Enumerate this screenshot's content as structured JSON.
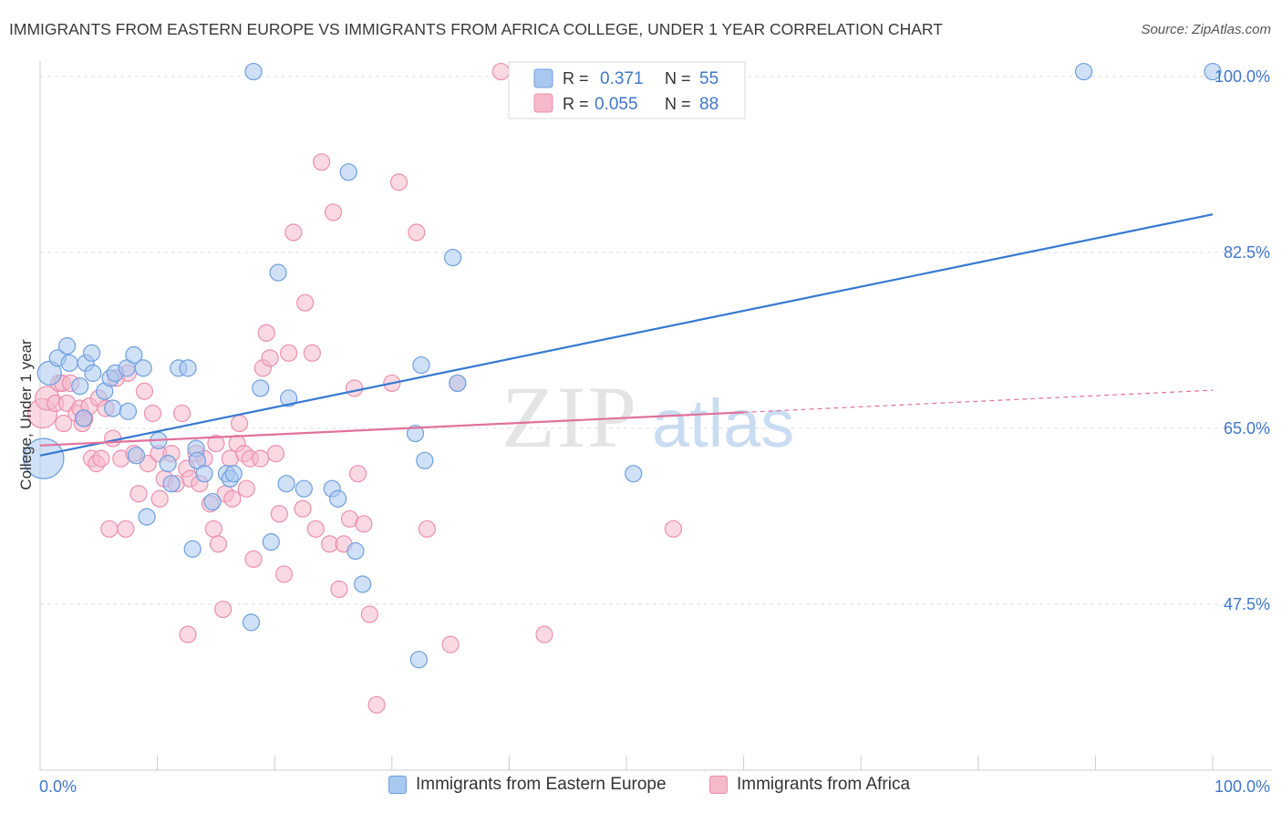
{
  "title": "IMMIGRANTS FROM EASTERN EUROPE VS IMMIGRANTS FROM AFRICA COLLEGE, UNDER 1 YEAR CORRELATION CHART",
  "source": "Source: ZipAtlas.com",
  "colors": {
    "blue_fill": "#a9c8f0",
    "blue_stroke": "#6d9fe0",
    "blue_line": "#3579d1",
    "pink_fill": "#f6b9cc",
    "pink_stroke": "#ec8fae",
    "pink_line": "#e2719b",
    "value_text": "#3f78c9",
    "grid": "#dddddd"
  },
  "stats_legend": {
    "rows": [
      {
        "r_label": "R =",
        "r_value": "0.371",
        "n_label": "N =",
        "n_value": "55",
        "series": "blue"
      },
      {
        "r_label": "R =",
        "r_value": "0.055",
        "n_label": "N =",
        "n_value": "88",
        "series": "pink"
      }
    ]
  },
  "watermark": {
    "zip": "ZIP",
    "atlas": "atlas"
  },
  "chart_data": {
    "type": "scatter",
    "title": "IMMIGRANTS FROM EASTERN EUROPE VS IMMIGRANTS FROM AFRICA COLLEGE, UNDER 1 YEAR CORRELATION CHART",
    "xlabel": "",
    "ylabel": "College, Under 1 year",
    "xlim": [
      0,
      100
    ],
    "ylim": [
      31,
      102
    ],
    "x_tick_labels": [
      "0.0%",
      "100.0%"
    ],
    "y_ticks": [
      {
        "value": 100.0,
        "label": "100.0%"
      },
      {
        "value": 82.5,
        "label": "82.5%"
      },
      {
        "value": 65.0,
        "label": "65.0%"
      },
      {
        "value": 47.5,
        "label": "47.5%"
      }
    ],
    "grid": true,
    "legend_position": "bottom",
    "series": [
      {
        "name": "Immigrants from Eastern Europe",
        "color": "blue",
        "trend": {
          "x": [
            0,
            100
          ],
          "y": [
            62.3,
            86.3
          ],
          "solid_to": 100
        },
        "points": [
          [
            0.3,
            62.0,
            22
          ],
          [
            0.8,
            70.5,
            13
          ],
          [
            1.5,
            72.0,
            9
          ],
          [
            2.3,
            73.2,
            9
          ],
          [
            2.5,
            71.5,
            9
          ],
          [
            3.4,
            69.2,
            9
          ],
          [
            3.7,
            66.0,
            9
          ],
          [
            3.9,
            71.5,
            9
          ],
          [
            4.4,
            72.5,
            9
          ],
          [
            4.5,
            70.5,
            9
          ],
          [
            5.5,
            68.7,
            9
          ],
          [
            6.0,
            70.0,
            9
          ],
          [
            6.2,
            67.0,
            9
          ],
          [
            6.4,
            70.5,
            9
          ],
          [
            7.4,
            71.0,
            9
          ],
          [
            7.5,
            66.7,
            9
          ],
          [
            8.0,
            72.3,
            9
          ],
          [
            8.2,
            62.3,
            9
          ],
          [
            8.8,
            71.0,
            9
          ],
          [
            9.1,
            56.2,
            9
          ],
          [
            10.1,
            63.8,
            9
          ],
          [
            10.9,
            61.5,
            9
          ],
          [
            11.2,
            59.5,
            9
          ],
          [
            11.8,
            71.0,
            9
          ],
          [
            12.6,
            71.0,
            9
          ],
          [
            13.0,
            53.0,
            9
          ],
          [
            13.3,
            63.0,
            9
          ],
          [
            13.4,
            61.8,
            9
          ],
          [
            14.0,
            60.5,
            9
          ],
          [
            14.7,
            57.7,
            9
          ],
          [
            15.9,
            60.5,
            9
          ],
          [
            16.2,
            60.0,
            9
          ],
          [
            16.5,
            60.5,
            9
          ],
          [
            18.0,
            45.7,
            9
          ],
          [
            18.8,
            69.0,
            9
          ],
          [
            19.7,
            53.7,
            9
          ],
          [
            20.3,
            80.5,
            9
          ],
          [
            21.0,
            59.5,
            9
          ],
          [
            21.2,
            68.0,
            9
          ],
          [
            22.5,
            59.0,
            9
          ],
          [
            24.9,
            59.0,
            9
          ],
          [
            25.4,
            58.0,
            9
          ],
          [
            26.3,
            90.5,
            9
          ],
          [
            26.9,
            52.8,
            9
          ],
          [
            27.5,
            49.5,
            9
          ],
          [
            32.3,
            42.0,
            9
          ],
          [
            32.0,
            64.5,
            9
          ],
          [
            32.5,
            71.3,
            9
          ],
          [
            32.8,
            61.8,
            9
          ],
          [
            35.2,
            82.0,
            9
          ],
          [
            35.6,
            69.5,
            9
          ],
          [
            50.6,
            60.5,
            9
          ],
          [
            18.2,
            100.5,
            9
          ],
          [
            89.0,
            100.5,
            9
          ],
          [
            100.0,
            100.5,
            9
          ]
        ]
      },
      {
        "name": "Immigrants from Africa",
        "color": "pink",
        "trend": {
          "x": [
            0,
            100
          ],
          "y": [
            63.3,
            68.8
          ],
          "solid_to": 60
        },
        "points": [
          [
            0.2,
            66.5,
            16
          ],
          [
            0.6,
            68.0,
            13
          ],
          [
            1.3,
            67.5,
            9
          ],
          [
            1.6,
            69.5,
            9
          ],
          [
            1.9,
            69.5,
            9
          ],
          [
            2.0,
            65.5,
            9
          ],
          [
            2.3,
            67.5,
            9
          ],
          [
            2.6,
            69.5,
            9
          ],
          [
            3.1,
            66.5,
            9
          ],
          [
            3.4,
            67.0,
            9
          ],
          [
            3.6,
            65.5,
            9
          ],
          [
            3.8,
            66.0,
            9
          ],
          [
            4.2,
            67.2,
            9
          ],
          [
            4.4,
            62.0,
            9
          ],
          [
            4.8,
            61.5,
            9
          ],
          [
            5.0,
            68.0,
            9
          ],
          [
            5.2,
            62.0,
            9
          ],
          [
            5.6,
            67.0,
            9
          ],
          [
            5.9,
            55.0,
            9
          ],
          [
            6.2,
            64.0,
            9
          ],
          [
            6.5,
            70.0,
            9
          ],
          [
            6.9,
            62.0,
            9
          ],
          [
            7.3,
            55.0,
            9
          ],
          [
            7.5,
            70.5,
            9
          ],
          [
            8.0,
            62.5,
            9
          ],
          [
            8.4,
            58.5,
            9
          ],
          [
            8.9,
            68.7,
            9
          ],
          [
            9.2,
            61.5,
            9
          ],
          [
            9.6,
            66.5,
            9
          ],
          [
            10.1,
            62.5,
            9
          ],
          [
            10.2,
            58.0,
            9
          ],
          [
            10.6,
            60.0,
            9
          ],
          [
            11.2,
            62.5,
            9
          ],
          [
            11.6,
            59.5,
            9
          ],
          [
            12.1,
            66.5,
            9
          ],
          [
            12.5,
            61.0,
            9
          ],
          [
            12.8,
            60.0,
            9
          ],
          [
            13.3,
            62.5,
            9
          ],
          [
            13.6,
            59.5,
            9
          ],
          [
            14.0,
            62.0,
            9
          ],
          [
            14.5,
            57.5,
            9
          ],
          [
            14.8,
            55.0,
            9
          ],
          [
            15.0,
            63.5,
            9
          ],
          [
            15.2,
            53.5,
            9
          ],
          [
            15.6,
            47.0,
            9
          ],
          [
            15.8,
            58.5,
            9
          ],
          [
            16.2,
            62.0,
            9
          ],
          [
            16.4,
            58.0,
            9
          ],
          [
            16.8,
            63.5,
            9
          ],
          [
            17.0,
            65.5,
            9
          ],
          [
            17.4,
            62.5,
            9
          ],
          [
            17.6,
            59.0,
            9
          ],
          [
            17.9,
            62.0,
            9
          ],
          [
            18.2,
            52.0,
            9
          ],
          [
            18.8,
            62.0,
            9
          ],
          [
            19.0,
            71.0,
            9
          ],
          [
            19.3,
            74.5,
            9
          ],
          [
            19.6,
            72.0,
            9
          ],
          [
            20.1,
            62.5,
            9
          ],
          [
            20.4,
            56.5,
            9
          ],
          [
            20.8,
            50.5,
            9
          ],
          [
            21.2,
            72.5,
            9
          ],
          [
            21.6,
            84.5,
            9
          ],
          [
            22.4,
            57.0,
            9
          ],
          [
            22.6,
            77.5,
            9
          ],
          [
            23.2,
            72.5,
            9
          ],
          [
            23.5,
            55.0,
            9
          ],
          [
            24.0,
            91.5,
            9
          ],
          [
            24.7,
            53.5,
            9
          ],
          [
            25.0,
            86.5,
            9
          ],
          [
            25.5,
            49.0,
            9
          ],
          [
            25.9,
            53.5,
            9
          ],
          [
            26.4,
            56.0,
            9
          ],
          [
            26.8,
            69.0,
            9
          ],
          [
            27.1,
            60.5,
            9
          ],
          [
            27.6,
            55.5,
            9
          ],
          [
            28.1,
            46.5,
            9
          ],
          [
            28.7,
            37.5,
            9
          ],
          [
            30.0,
            69.5,
            9
          ],
          [
            30.6,
            89.5,
            9
          ],
          [
            32.1,
            84.5,
            9
          ],
          [
            33.0,
            55.0,
            9
          ],
          [
            35.0,
            43.5,
            9
          ],
          [
            35.6,
            69.5,
            9
          ],
          [
            39.3,
            100.5,
            9
          ],
          [
            43.0,
            44.5,
            9
          ],
          [
            54.0,
            55.0,
            9
          ],
          [
            12.6,
            44.5,
            9
          ]
        ]
      }
    ]
  }
}
